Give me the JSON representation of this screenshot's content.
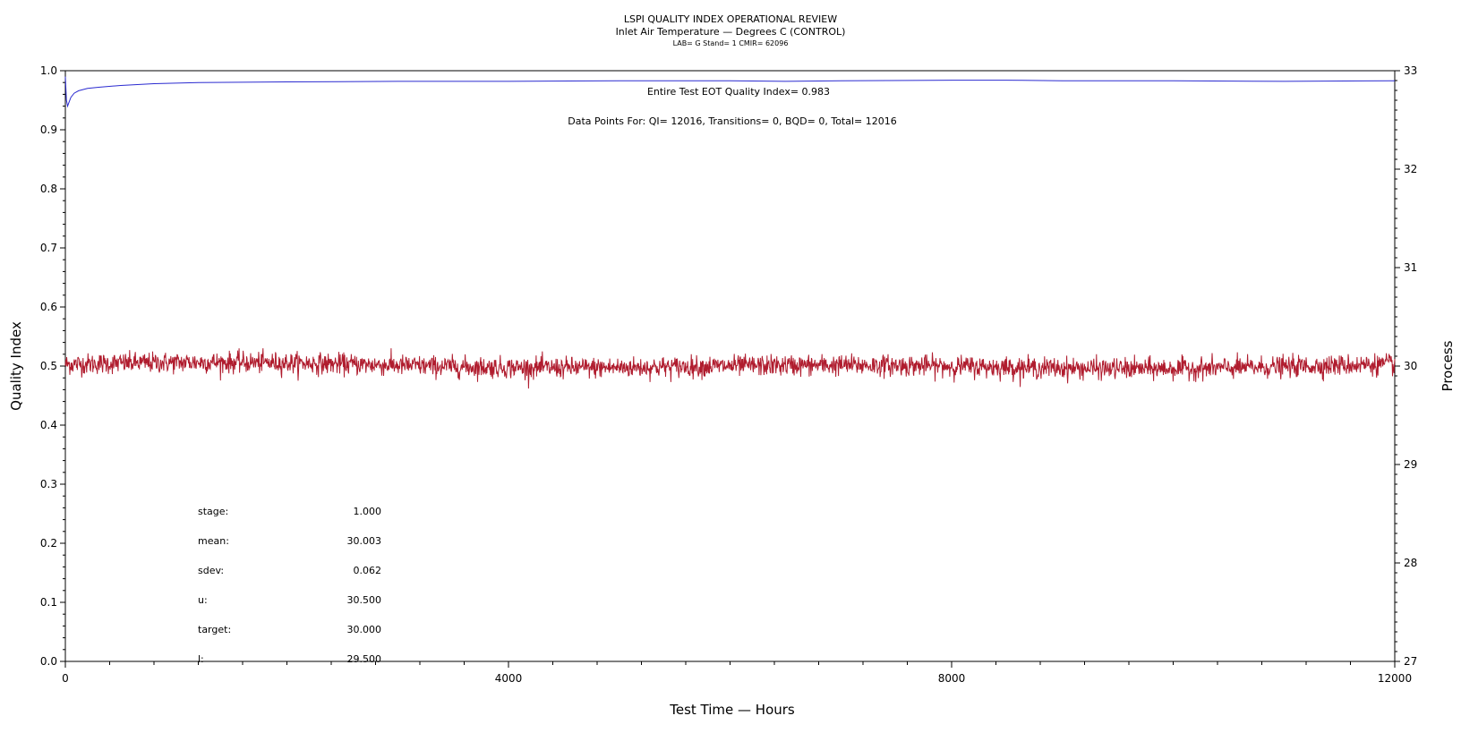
{
  "titles": {
    "line1": "LSPI QUALITY INDEX OPERATIONAL REVIEW",
    "line2": "Inlet Air Temperature — Degrees C (CONTROL)",
    "line3": "LAB= G Stand= 1 CMIR= 62096"
  },
  "annotations": {
    "eot": "Entire Test EOT Quality Index=   0.983",
    "datapoints": "Data Points For: QI= 12016, Transitions=      0, BQD=      0, Total= 12016"
  },
  "stats": [
    {
      "label": "stage:",
      "value": "1.000"
    },
    {
      "label": "mean:",
      "value": "30.003"
    },
    {
      "label": "sdev:",
      "value": "0.062"
    },
    {
      "label": "u:",
      "value": "30.500"
    },
    {
      "label": "target:",
      "value": "30.000"
    },
    {
      "label": "l:",
      "value": "29.500"
    }
  ],
  "chart_data": {
    "type": "line",
    "xlabel": "Test Time — Hours",
    "ylabel": "Quality Index",
    "y2label": "Process",
    "xlim": [
      0,
      12000
    ],
    "ylim": [
      0,
      1.0
    ],
    "y2lim": [
      27,
      33
    ],
    "x_ticks": [
      "0",
      "4000",
      "8000",
      "12000"
    ],
    "y_ticks": [
      "0.0",
      "0.1",
      "0.2",
      "0.3",
      "0.4",
      "0.5",
      "0.6",
      "0.7",
      "0.8",
      "0.9",
      "1.0"
    ],
    "y2_ticks": [
      "27",
      "28",
      "29",
      "30",
      "31",
      "32",
      "33"
    ],
    "series": [
      {
        "name": "Quality Index",
        "axis": "left",
        "color": "#2a2ad0",
        "x": [
          0,
          10,
          20,
          30,
          50,
          80,
          120,
          200,
          300,
          500,
          800,
          1200,
          2000,
          3000,
          4000,
          5000,
          6000,
          6500,
          7000,
          8000,
          8500,
          9000,
          10000,
          11000,
          12000
        ],
        "y": [
          0.99,
          0.95,
          0.94,
          0.945,
          0.955,
          0.962,
          0.966,
          0.97,
          0.972,
          0.975,
          0.978,
          0.98,
          0.981,
          0.982,
          0.982,
          0.983,
          0.983,
          0.982,
          0.983,
          0.984,
          0.984,
          0.983,
          0.983,
          0.982,
          0.983
        ]
      },
      {
        "name": "Process",
        "axis": "right",
        "color": "#b01c2e",
        "mean": 30.003,
        "sdev": 0.062,
        "points": 12016
      }
    ]
  }
}
